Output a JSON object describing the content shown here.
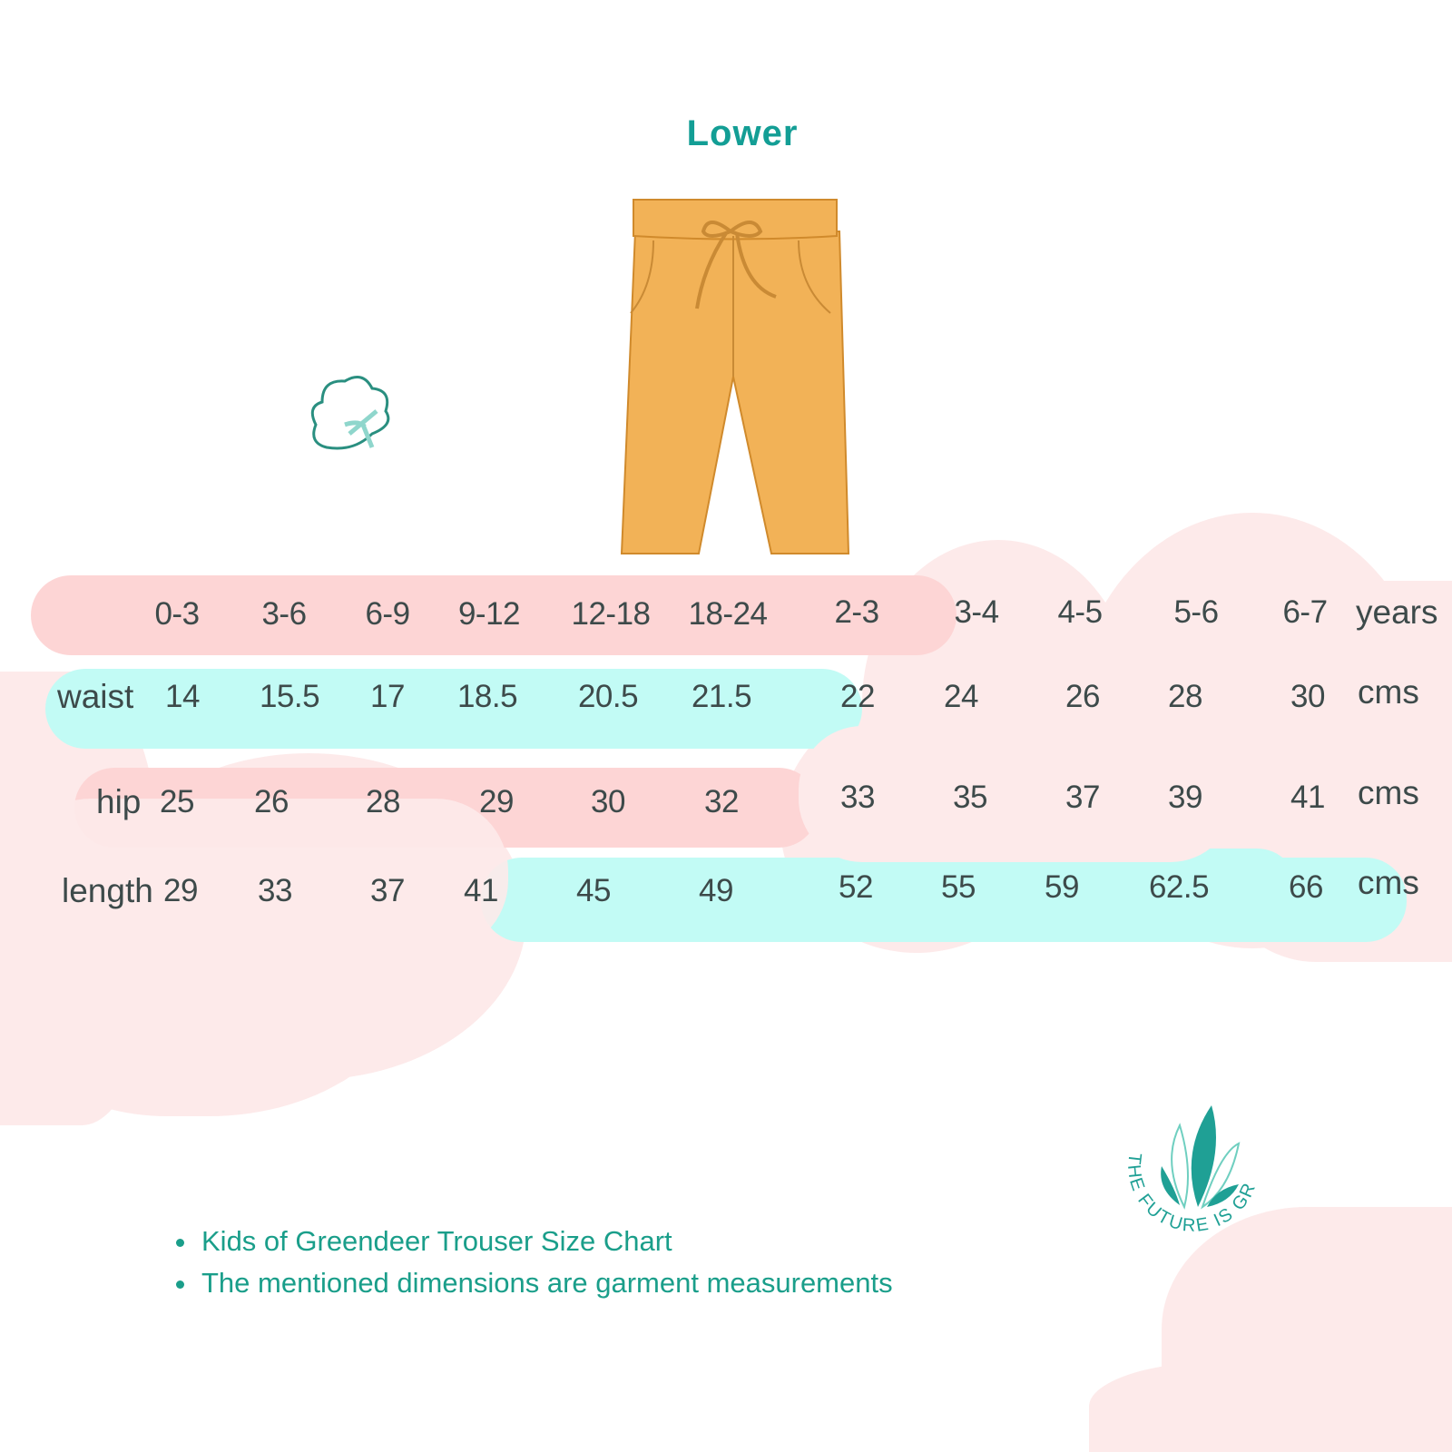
{
  "title": "Lower",
  "colors": {
    "title": "#139e95",
    "header_bar": "#fdd5d5",
    "alt_bar": "#c2fbf5",
    "cloud": "#fdeaea",
    "text": "#3d4a4a",
    "note_text": "#1a9e8a"
  },
  "size_table": {
    "columns": [
      "0-3",
      "3-6",
      "6-9",
      "9-12",
      "12-18",
      "18-24",
      "2-3",
      "3-4",
      "4-5",
      "5-6",
      "6-7"
    ],
    "header_unit": "years",
    "rows": [
      {
        "label": "waist",
        "values": [
          "14",
          "15.5",
          "17",
          "18.5",
          "20.5",
          "21.5",
          "22",
          "24",
          "26",
          "28",
          "30"
        ],
        "unit": "cms"
      },
      {
        "label": "hip",
        "values": [
          "25",
          "26",
          "28",
          "29",
          "30",
          "32",
          "33",
          "35",
          "37",
          "39",
          "41"
        ],
        "unit": "cms"
      },
      {
        "label": "length",
        "values": [
          "29",
          "33",
          "37",
          "41",
          "45",
          "49",
          "52",
          "55",
          "59",
          "62.5",
          "66"
        ],
        "unit": "cms"
      }
    ]
  },
  "notes": [
    "Kids of Greendeer Trouser  Size Chart",
    "The mentioned dimensions are garment measurements"
  ],
  "logo": {
    "text": "THE FUTURE IS GREEN"
  },
  "icons": [
    "trouser-illustration",
    "cotton-flower-icon",
    "leaves-logo"
  ]
}
